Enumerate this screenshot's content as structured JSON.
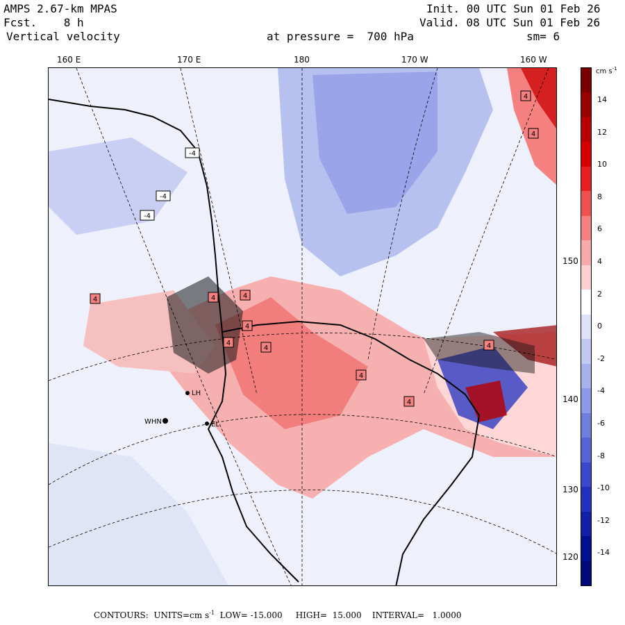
{
  "header": {
    "model": "AMPS 2.67-km MPAS",
    "forecast": "Fcst.    8 h",
    "field": "Vertical velocity",
    "init": "Init. 00 UTC Sun 01 Feb 26",
    "valid": "Valid. 08 UTC Sun 01 Feb 26",
    "level": "at pressure =  700 hPa",
    "smoothing": "sm= 6"
  },
  "longitude_labels": [
    "160 E",
    "170 E",
    "180",
    "170 W",
    "160 W"
  ],
  "latitude_labels": [
    "150 W",
    "140 W",
    "130 W",
    "120 W"
  ],
  "colorbar": {
    "units_label": "cm s",
    "units_exp": "-1",
    "tick_labels": [
      "14",
      "12",
      "10",
      "8",
      "6",
      "4",
      "2",
      "0",
      "-2",
      "-4",
      "-6",
      "-8",
      "-10",
      "-12",
      "-14"
    ],
    "colors": [
      "#7a0000",
      "#9b0000",
      "#b80000",
      "#d40000",
      "#e82020",
      "#f05050",
      "#f48080",
      "#f7aaaa",
      "#fad0d0",
      "#ffffff",
      "#dde2f8",
      "#c2caf2",
      "#a7b2ec",
      "#8c99e6",
      "#6f7fde",
      "#5565d6",
      "#3a49cc",
      "#2030c0",
      "#1020a8",
      "#001090",
      "#00087a"
    ]
  },
  "map_labels": {
    "contour_boxes": [
      "4",
      "4",
      "-4",
      "-4",
      "-4",
      "4",
      "4",
      "4",
      "4",
      "4",
      "4",
      "4",
      "4",
      "4"
    ],
    "stations": [
      "WHN",
      "LH",
      "EL"
    ]
  },
  "footer": {
    "contours_label": "CONTOURS:",
    "units_label": "UNITS=cm s",
    "units_exp": "-1",
    "low": "LOW= -15.000",
    "high": "HIGH=  15.000",
    "interval": "INTERVAL=   1.0000"
  }
}
